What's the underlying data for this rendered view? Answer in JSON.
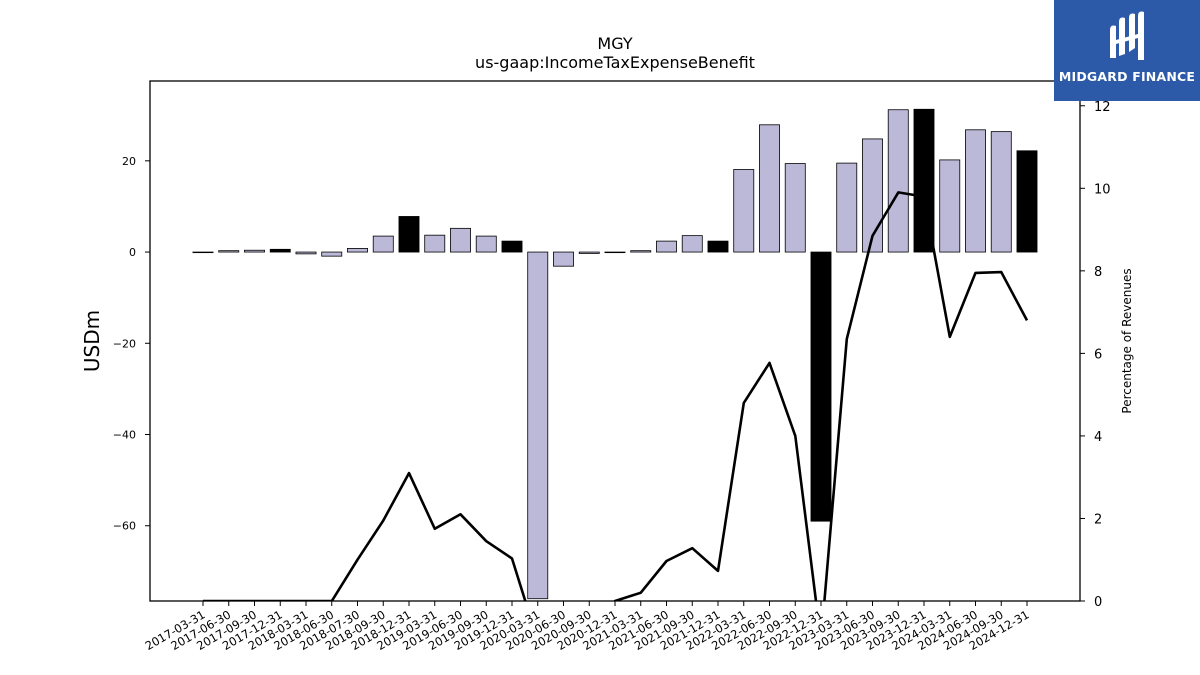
{
  "logo": {
    "text": "MIDGARD FINANCE",
    "background": "#2c5aa8"
  },
  "chart_data": {
    "type": "bar",
    "title": "MGY",
    "subtitle": "us-gaap:IncomeTaxExpenseBenefit",
    "ylabel": "USDm",
    "y2label": "Percentage of Revenues",
    "ylim": [
      -76.5,
      37.5
    ],
    "y2lim": [
      0,
      12.6
    ],
    "yticks": [
      -60,
      -40,
      -20,
      0,
      20
    ],
    "y2ticks": [
      0,
      2,
      4,
      6,
      8,
      10,
      12
    ],
    "grid": false,
    "categories": [
      "2017-03-31",
      "2017-06-30",
      "2017-09-30",
      "2017-12-31",
      "2018-03-31",
      "2018-06-30",
      "2018-07-30",
      "2018-09-30",
      "2018-12-31",
      "2019-03-31",
      "2019-06-30",
      "2019-09-30",
      "2019-12-31",
      "2020-03-31",
      "2020-06-30",
      "2020-09-30",
      "2020-12-31",
      "2021-03-31",
      "2021-06-30",
      "2021-09-30",
      "2021-12-31",
      "2022-03-31",
      "2022-06-30",
      "2022-09-30",
      "2022-12-31",
      "2023-03-31",
      "2023-06-30",
      "2023-09-30",
      "2023-12-31",
      "2024-03-31",
      "2024-06-30",
      "2024-09-30",
      "2024-12-31"
    ],
    "series": [
      {
        "kind": "bar",
        "values": [
          -0.1,
          0.3,
          0.4,
          0.6,
          -0.4,
          -0.9,
          0.8,
          3.5,
          7.8,
          3.7,
          5.2,
          3.5,
          2.4,
          -76,
          -3.1,
          -0.3,
          -0.1,
          0.3,
          2.4,
          3.6,
          2.4,
          18.1,
          27.9,
          19.4,
          -59,
          19.5,
          24.8,
          31.2,
          31.3,
          20.2,
          26.8,
          26.4,
          22.2
        ],
        "highlight": [
          false,
          false,
          false,
          true,
          false,
          false,
          false,
          false,
          true,
          false,
          false,
          false,
          true,
          false,
          false,
          false,
          false,
          false,
          false,
          false,
          true,
          false,
          false,
          false,
          true,
          false,
          false,
          false,
          true,
          false,
          false,
          false,
          true
        ],
        "color": "#bcb9d8",
        "highlight_color": "#000000"
      },
      {
        "kind": "line",
        "axis": "right",
        "color": "#000000",
        "values": [
          0,
          0,
          0,
          0,
          0,
          0,
          1.0,
          1.95,
          3.1,
          1.75,
          2.1,
          1.45,
          1.03,
          null,
          null,
          null,
          0,
          0.2,
          0.97,
          1.28,
          0.73,
          4.8,
          5.77,
          4.0,
          null,
          6.35,
          8.85,
          9.9,
          9.8,
          6.4,
          7.95,
          7.97,
          6.8
        ]
      }
    ]
  }
}
